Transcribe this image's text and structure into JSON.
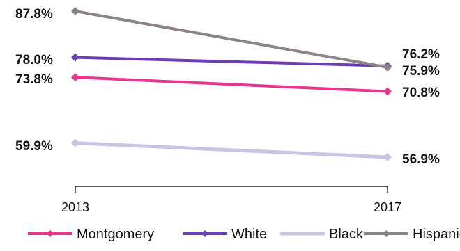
{
  "chart_data": {
    "type": "line",
    "categories": [
      "2013",
      "2017"
    ],
    "series": [
      {
        "name": "Montgomery",
        "values": [
          73.8,
          70.8
        ],
        "labels": [
          "73.8%",
          "70.8%"
        ],
        "color": "#e8368f"
      },
      {
        "name": "White",
        "values": [
          78.0,
          76.2
        ],
        "labels": [
          "78.0%",
          "76.2%"
        ],
        "color": "#6a3fb5"
      },
      {
        "name": "Black",
        "values": [
          59.9,
          56.9
        ],
        "labels": [
          "59.9%",
          "56.9%"
        ],
        "color": "#cbc3e3"
      },
      {
        "name": "Hispanic",
        "values": [
          87.8,
          75.9
        ],
        "labels": [
          "87.8%",
          "75.9%"
        ],
        "color": "#8c8385"
      }
    ],
    "legend": {
      "position": "bottom"
    },
    "grid": false,
    "title": "",
    "xlabel": "",
    "ylabel": ""
  }
}
